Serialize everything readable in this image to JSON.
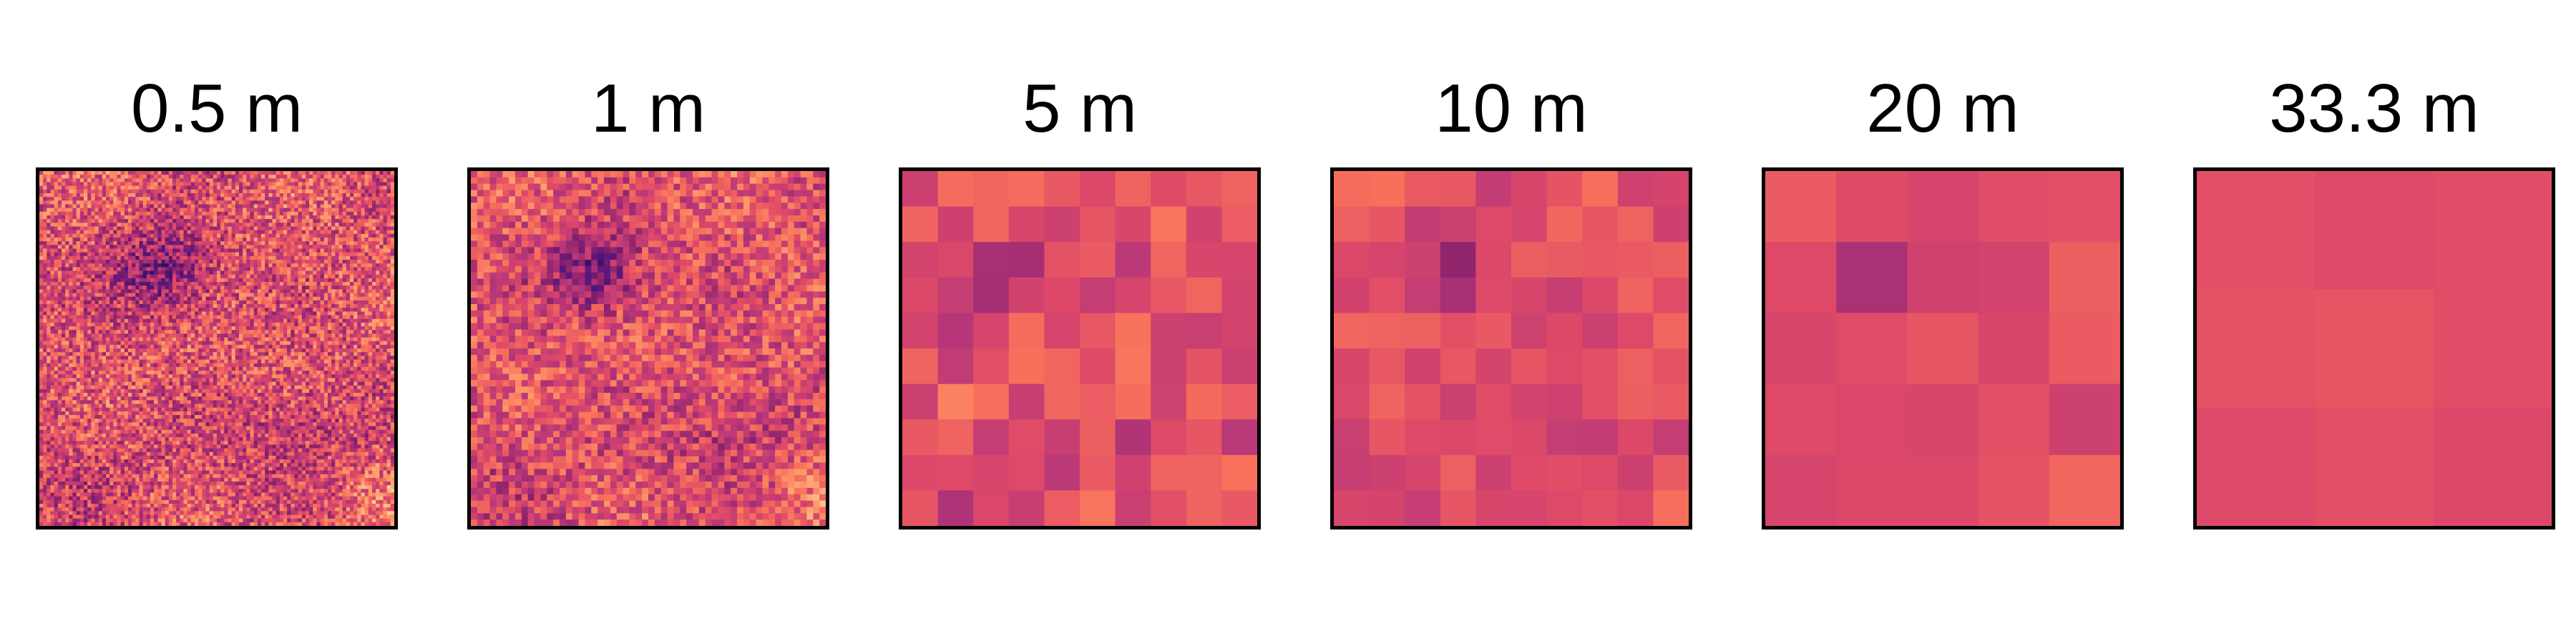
{
  "panels": [
    {
      "label": "0.5 m",
      "grid": 96,
      "noise": 0.55
    },
    {
      "label": "1 m",
      "grid": 56,
      "noise": 0.45
    },
    {
      "label": "5 m",
      "grid": 10,
      "noise": 0.3
    },
    {
      "label": "10 m",
      "grid": 10,
      "noise": 0.18
    },
    {
      "label": "20 m",
      "grid": 5,
      "noise": 0.1
    },
    {
      "label": "33.3 m",
      "grid": 3,
      "noise": 0.04
    }
  ],
  "colormap": [
    "#2d1160",
    "#5a167e",
    "#8a226a",
    "#b73779",
    "#de4968",
    "#f7705c",
    "#fe9f6d",
    "#fecf92"
  ]
}
